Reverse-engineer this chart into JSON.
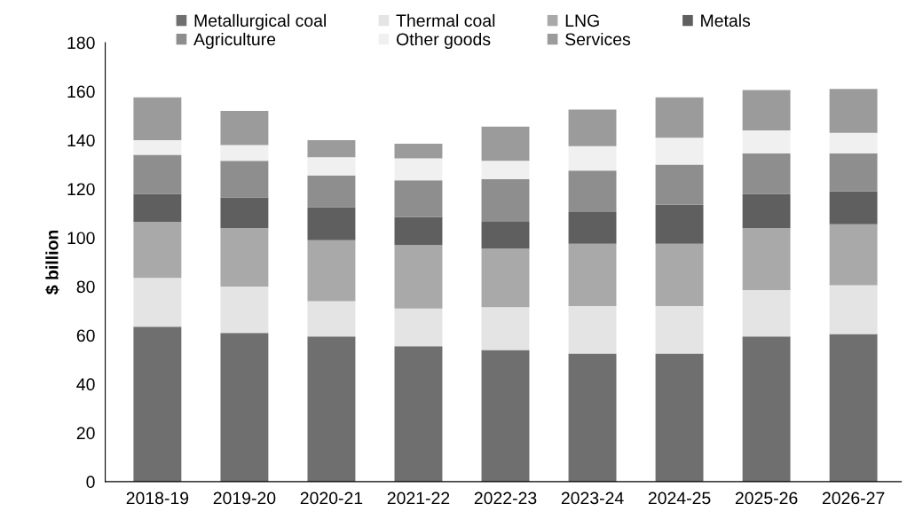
{
  "chart_data": {
    "type": "bar",
    "stacked": true,
    "ylabel": "$ billion",
    "categories": [
      "2018-19",
      "2019-20",
      "2020-21",
      "2021-22",
      "2022-23",
      "2023-24",
      "2024-25",
      "2025-26",
      "2026-27"
    ],
    "series": [
      {
        "name": "Metallurgical coal",
        "color": "#6f6f6f",
        "values": [
          63.5,
          61,
          59.5,
          55.5,
          54,
          52.5,
          52.5,
          59.5,
          60.5
        ]
      },
      {
        "name": "Thermal coal",
        "color": "#e4e4e4",
        "values": [
          20,
          19,
          14.5,
          15.5,
          17.5,
          19.5,
          19.5,
          19,
          20
        ]
      },
      {
        "name": "LNG",
        "color": "#a9a9a9",
        "values": [
          23,
          24,
          25,
          26,
          24,
          25.5,
          25.5,
          25.5,
          25
        ]
      },
      {
        "name": "Metals",
        "color": "#5f5f5f",
        "values": [
          11.5,
          12.5,
          13.5,
          11.5,
          11,
          13,
          16,
          14,
          13.5
        ]
      },
      {
        "name": "Agriculture",
        "color": "#8e8e8e",
        "values": [
          16,
          15,
          13,
          15,
          17.5,
          17,
          16.5,
          16.5,
          15.5
        ]
      },
      {
        "name": "Other goods",
        "color": "#f0f0f0",
        "values": [
          6,
          6.5,
          7.5,
          9,
          7.5,
          10,
          11,
          9.5,
          8.5
        ]
      },
      {
        "name": "Services",
        "color": "#9b9b9b",
        "values": [
          17.5,
          14,
          7,
          6,
          14,
          15,
          16.5,
          16.5,
          18
        ]
      }
    ],
    "ylim": [
      0,
      180
    ],
    "yticks": [
      0,
      20,
      40,
      60,
      80,
      100,
      120,
      140,
      160,
      180
    ],
    "grid": false,
    "legend": "top"
  }
}
